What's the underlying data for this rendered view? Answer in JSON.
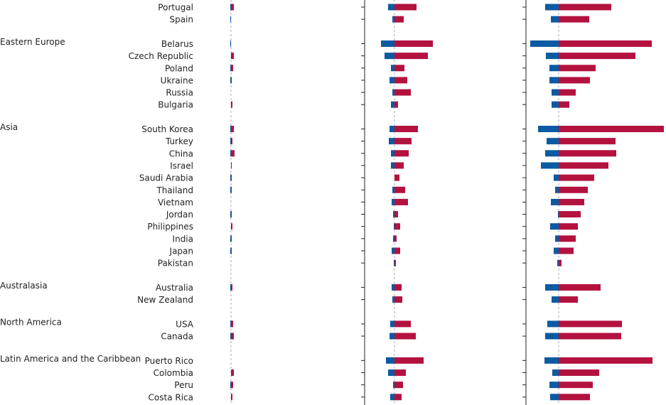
{
  "chart_data": {
    "type": "diverging-bar",
    "groups": [
      {
        "name": null,
        "categories": [
          "Portugal",
          "Spain"
        ]
      },
      {
        "name": "Eastern Europe",
        "categories": [
          "Belarus",
          "Czech Republic",
          "Poland",
          "Ukraine",
          "Russia",
          "Bulgaria"
        ]
      },
      {
        "name": "Asia",
        "categories": [
          "South Korea",
          "Turkey",
          "China",
          "Israel",
          "Saudi Arabia",
          "Thailand",
          "Vietnam",
          "Jordan",
          "Philippines",
          "India",
          "Japan",
          "Pakistan"
        ]
      },
      {
        "name": "Australasia",
        "categories": [
          "Australia",
          "New Zealand"
        ]
      },
      {
        "name": "North America",
        "categories": [
          "USA",
          "Canada"
        ]
      },
      {
        "name": "Latin America and the Caribbean",
        "categories": [
          "Puerto Rico",
          "Colombia",
          "Peru",
          "Costa Rica"
        ]
      }
    ],
    "panels": [
      {
        "xlim": [
          -40,
          188
        ],
        "series": [
          {
            "color": "#0b5aa2",
            "values": [
              -1,
              -1,
              -1,
              0,
              -1,
              -1,
              0,
              0,
              -1,
              -1,
              -1,
              0,
              -1,
              -1,
              0,
              -1,
              0,
              -1,
              -1,
              0,
              -1,
              0,
              -1,
              -1,
              0,
              0,
              -1,
              0
            ]
          },
          {
            "color": "#b3123f",
            "values": [
              4,
              0,
              0,
              4,
              3,
              1,
              0,
              2,
              4,
              2,
              5,
              1,
              1,
              1,
              0,
              1,
              2,
              1,
              1,
              0,
              2,
              0,
              3,
              4,
              0,
              4,
              3,
              2
            ]
          }
        ]
      },
      {
        "xlim": [
          -42,
          185
        ],
        "series": [
          {
            "color": "#0b5aa2",
            "values": [
              -9,
              -3,
              -19,
              -14,
              -5,
              -7,
              -3,
              -5,
              -7,
              -8,
              -5,
              -5,
              0,
              -3,
              -4,
              -2,
              -1,
              -2,
              -4,
              -1,
              -4,
              -3,
              -6,
              -7,
              -12,
              -9,
              -2,
              -6
            ]
          },
          {
            "color": "#b3123f",
            "values": [
              31,
              13,
              54,
              47,
              14,
              18,
              23,
              5,
              33,
              24,
              20,
              13,
              7,
              15,
              19,
              5,
              8,
              3,
              8,
              2,
              10,
              11,
              23,
              30,
              41,
              16,
              12,
              10
            ]
          }
        ]
      },
      {
        "xlim": [
          -46,
          151
        ],
        "series": [
          {
            "color": "#0b5aa2",
            "values": [
              -19,
              -11,
              -40,
              -18,
              -13,
              -13,
              -10,
              -10,
              -29,
              -17,
              -19,
              -25,
              -7,
              -5,
              -11,
              -1,
              -12,
              -5,
              -7,
              -2,
              -19,
              -10,
              -16,
              -19,
              -20,
              -9,
              -13,
              -12
            ]
          },
          {
            "color": "#b3123f",
            "values": [
              74,
              43,
              131,
              108,
              52,
              44,
              24,
              15,
              148,
              80,
              81,
              70,
              50,
              41,
              36,
              31,
              27,
              24,
              21,
              4,
              59,
              27,
              89,
              88,
              132,
              57,
              48,
              44
            ]
          }
        ]
      }
    ]
  }
}
